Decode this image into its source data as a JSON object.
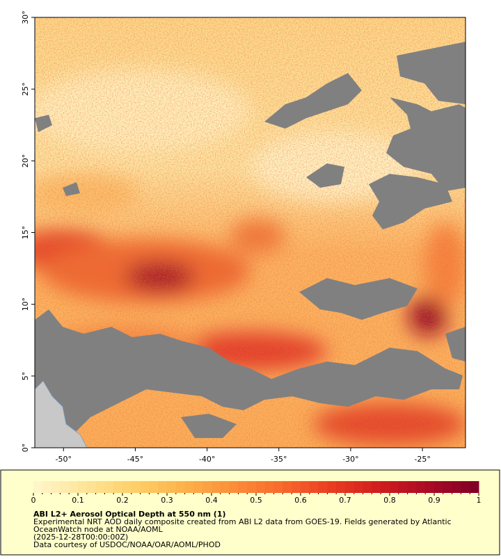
{
  "map": {
    "xaxis": {
      "lim": [
        -52,
        -22
      ],
      "ticks": [
        {
          "value": -50,
          "label": "-50°"
        },
        {
          "value": -45,
          "label": "-45°"
        },
        {
          "value": -40,
          "label": "-40°"
        },
        {
          "value": -35,
          "label": "-35°"
        },
        {
          "value": -30,
          "label": "-30°"
        },
        {
          "value": -25,
          "label": "-25°"
        }
      ]
    },
    "yaxis": {
      "lim": [
        0,
        30
      ],
      "ticks": [
        {
          "value": 0,
          "label": "0°"
        },
        {
          "value": 5,
          "label": "5°"
        },
        {
          "value": 10,
          "label": "10°"
        },
        {
          "value": 15,
          "label": "15°"
        },
        {
          "value": 20,
          "label": "20°"
        },
        {
          "value": 25,
          "label": "25°"
        },
        {
          "value": 30,
          "label": "30°"
        }
      ]
    }
  },
  "colorbar": {
    "lim": [
      0,
      1
    ],
    "ticks": [
      0,
      0.1,
      0.2,
      0.3,
      0.4,
      0.5,
      0.6,
      0.7,
      0.8,
      0.9,
      1
    ],
    "colors": [
      "#fff7cc",
      "#fee59a",
      "#fed06a",
      "#fdb34c",
      "#fc8f3a",
      "#f86a2c",
      "#ea3d22",
      "#d01c1e",
      "#a90a26",
      "#7f0026"
    ]
  },
  "caption": {
    "title": "ABI L2+ Aerosol Optical Depth at 550 nm (1)",
    "lines": [
      "Experimental NRT AOD daily composite created from ABI L2 data from GOES-19. Fields generated by Atlantic",
      "OceanWatch node at NOAA/AOML",
      "(2025-12-28T00:00:00Z)",
      "Data courtesy of USDOC/NOAA/OAR/AOML/PHOD"
    ]
  }
}
